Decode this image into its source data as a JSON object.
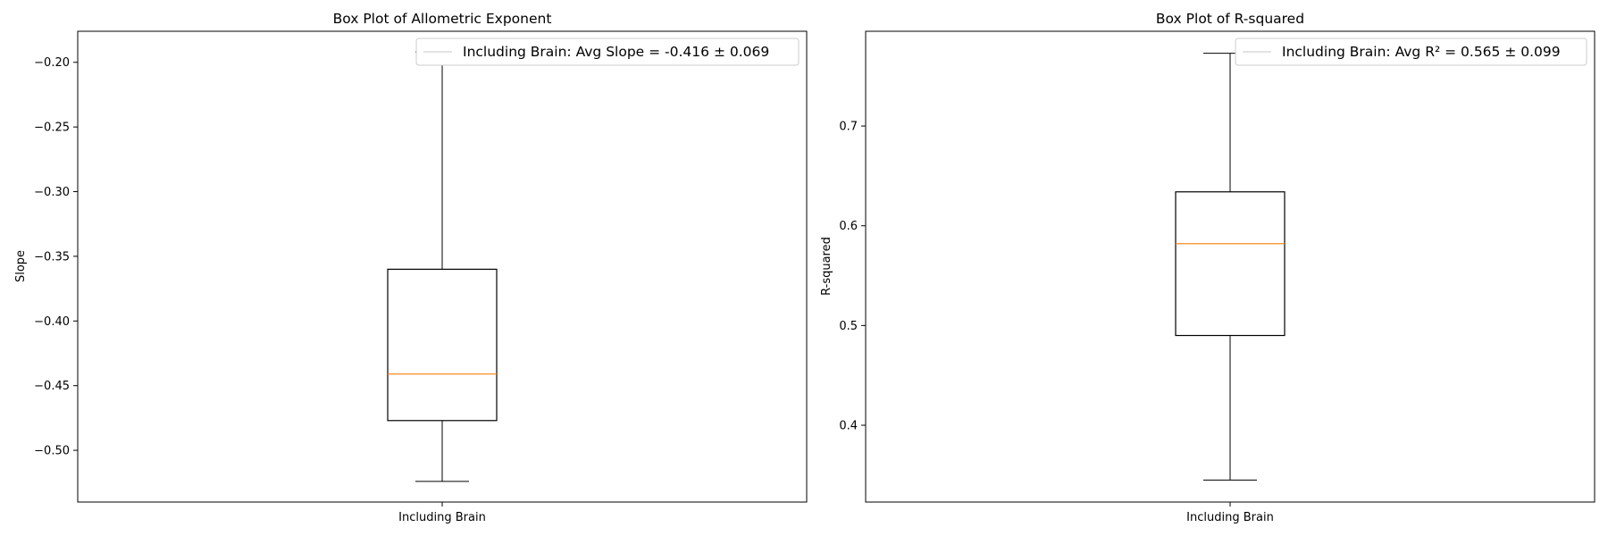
{
  "colors": {
    "box": "#000000",
    "median": "#ff7f0e",
    "legend_handle": "#d0d0d0",
    "legend_border": "#cccccc",
    "background": "#ffffff"
  },
  "chart_data": [
    {
      "type": "box",
      "title": "Box Plot of Allometric Exponent",
      "xlabel": "",
      "ylabel": "Slope",
      "categories": [
        "Including Brain"
      ],
      "ylim": [
        -0.54,
        -0.176
      ],
      "yticks": [
        -0.5,
        -0.45,
        -0.4,
        -0.35,
        -0.3,
        -0.25,
        -0.2
      ],
      "ytick_labels": [
        "−0.50",
        "−0.45",
        "−0.40",
        "−0.35",
        "−0.30",
        "−0.25",
        "−0.20"
      ],
      "boxes": [
        {
          "category": "Including Brain",
          "whisker_low": -0.524,
          "q1": -0.477,
          "median": -0.441,
          "q3": -0.36,
          "whisker_high": -0.192
        }
      ],
      "legend": {
        "location": "upper right",
        "entries": [
          "Including Brain: Avg Slope = -0.416 ± 0.069"
        ]
      },
      "grid": false
    },
    {
      "type": "box",
      "title": "Box Plot of R-squared",
      "xlabel": "",
      "ylabel": "R-squared",
      "categories": [
        "Including Brain"
      ],
      "ylim": [
        0.323,
        0.795
      ],
      "yticks": [
        0.4,
        0.5,
        0.6,
        0.7
      ],
      "ytick_labels": [
        "0.4",
        "0.5",
        "0.6",
        "0.7"
      ],
      "boxes": [
        {
          "category": "Including Brain",
          "whisker_low": 0.345,
          "q1": 0.49,
          "median": 0.582,
          "q3": 0.634,
          "whisker_high": 0.773
        }
      ],
      "legend": {
        "location": "upper right",
        "entries": [
          "Including Brain: Avg R² = 0.565 ± 0.099"
        ]
      },
      "grid": false
    }
  ]
}
